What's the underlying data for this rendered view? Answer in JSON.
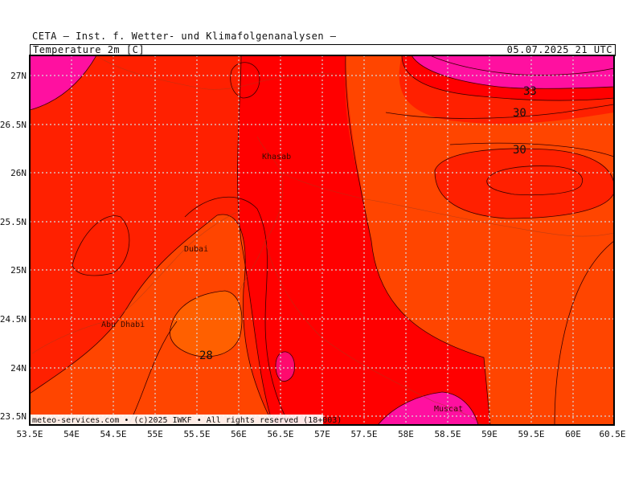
{
  "header": {
    "institute": "CETA — Inst. f. Wetter- und Klimafolgenanalysen —",
    "variable": "Temperature_2m [C]",
    "valid_time": "05.07.2025 21 UTC"
  },
  "map": {
    "lat_labels": [
      "27N",
      "26.5N",
      "26N",
      "25.5N",
      "25N",
      "24.5N",
      "24N",
      "23.5N"
    ],
    "lon_labels": [
      "53.5E",
      "54E",
      "54.5E",
      "55E",
      "55.5E",
      "56E",
      "56.5E",
      "57E",
      "57.5E",
      "58E",
      "58.5E",
      "59E",
      "59.5E",
      "60E",
      "60.5E"
    ],
    "cities": [
      "Khasab",
      "Dubai",
      "Abu Dhabi",
      "Muscat"
    ],
    "contour_labels": [
      "33",
      "30",
      "30",
      "28"
    ],
    "footer": "meteo-services.com • (c)2025 IWKF • All rights reserved (18+003)",
    "colors": {
      "t_below_28": "#ff6000",
      "t_28_30": "#ff4500",
      "t_30_32": "#ff2000",
      "t_32_33": "#ff0000",
      "t_33_34": "#ff0a6e",
      "t_34_plus": "#ff10a0",
      "contour": "#3a0000",
      "grid": "#d8d8d8"
    }
  }
}
